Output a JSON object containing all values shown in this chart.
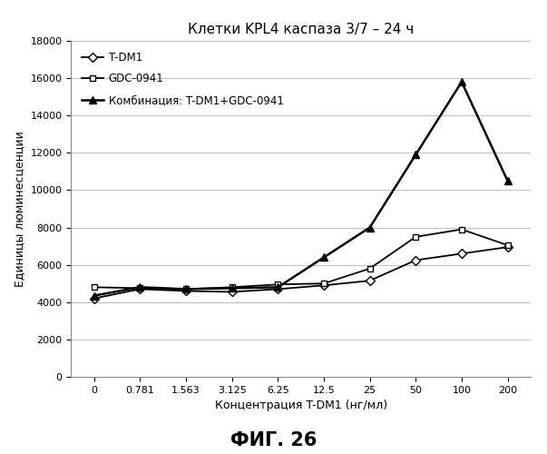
{
  "title": "Клетки KPL4 каспаза 3/7 – 24 ч",
  "xlabel": "Концентрация T-DM1 (нг/мл)",
  "ylabel": "Единицы люминесценции",
  "figcaption": "ФИГ. 26",
  "x_labels": [
    "0",
    "0.781",
    "1.563",
    "3.125",
    "6.25",
    "12.5",
    "25",
    "50",
    "100",
    "200"
  ],
  "x_values": [
    0,
    1,
    2,
    3,
    4,
    5,
    6,
    7,
    8,
    9
  ],
  "ylim": [
    0,
    18000
  ],
  "yticks": [
    0,
    2000,
    4000,
    6000,
    8000,
    10000,
    12000,
    14000,
    16000,
    18000
  ],
  "series": [
    {
      "label": "T-DM1",
      "marker": "D",
      "color": "#000000",
      "linewidth": 1.3,
      "markersize": 5,
      "markerfacecolor": "white",
      "values": [
        4200,
        4700,
        4600,
        4550,
        4700,
        4900,
        5150,
        6250,
        6600,
        6950
      ]
    },
    {
      "label": "GDC-0941",
      "marker": "s",
      "color": "#000000",
      "linewidth": 1.3,
      "markersize": 5,
      "markerfacecolor": "white",
      "values": [
        4800,
        4750,
        4700,
        4800,
        4950,
        5000,
        5800,
        7500,
        7900,
        7050
      ]
    },
    {
      "label": "Комбинация: T-DM1+GDC-0941",
      "marker": "^",
      "color": "#000000",
      "linewidth": 1.8,
      "markersize": 6,
      "markerfacecolor": "black",
      "values": [
        4350,
        4800,
        4700,
        4750,
        4800,
        6400,
        8000,
        11900,
        15800,
        10500
      ]
    }
  ],
  "legend_loc": "upper left",
  "grid": true,
  "background_color": "#ffffff",
  "title_fontsize": 11,
  "axis_label_fontsize": 9,
  "tick_fontsize": 8,
  "legend_fontsize": 8.5,
  "caption_fontsize": 15
}
